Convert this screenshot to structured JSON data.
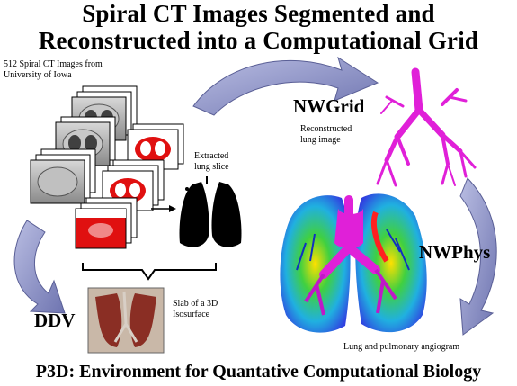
{
  "title": {
    "line1": "Spiral CT Images Segmented and",
    "line2": "Reconstructed into a Computational Grid"
  },
  "labels": {
    "ct_source_line1": "512 Spiral CT Images from",
    "ct_source_line2": "University of Iowa",
    "extracted_line1": "Extracted",
    "extracted_line2": "lung slice",
    "nwgrid": "NWGrid",
    "recon_line1": "Reconstructed",
    "recon_line2": "lung image",
    "nwphys": "NWPhys",
    "ddv": "DDV",
    "slab_line1": "Slab of a 3D",
    "slab_line2": "Isosurface",
    "angiogram": "Lung and pulmonary angiogram"
  },
  "footer": "P3D: Environment for Quantative Computational Biology",
  "colors": {
    "arrow_fill": "#8c92c4",
    "lung_airway": "#e020d8",
    "segment_red": "#e01010",
    "ct_gray": "#9a9a9a"
  }
}
